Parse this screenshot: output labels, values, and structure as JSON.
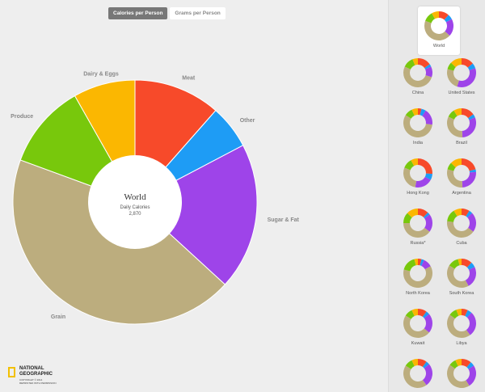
{
  "colors": {
    "meat": "#f74a2a",
    "other": "#1e9cf5",
    "sugar_fat": "#9e44e9",
    "grain": "#bcad7e",
    "produce": "#78c80c",
    "dairy_eggs": "#fbb701",
    "background": "#eeeeee",
    "sidebar_background": "#e8e8e8"
  },
  "toggle": {
    "calories_label": "Calories per Person",
    "grams_label": "Grams per Person"
  },
  "chart_data": {
    "type": "pie",
    "title": "World",
    "subtitle": "Daily Calories",
    "total": "2,870",
    "slices": [
      {
        "key": "meat",
        "label": "Meat",
        "percent": 11.5
      },
      {
        "key": "other",
        "label": "Other",
        "percent": 5.8
      },
      {
        "key": "sugar_fat",
        "label": "Sugar & Fat",
        "percent": 19.5
      },
      {
        "key": "grain",
        "label": "Grain",
        "percent": 43.8
      },
      {
        "key": "produce",
        "label": "Produce",
        "percent": 11.2
      },
      {
        "key": "dairy_eggs",
        "label": "Dairy & Eggs",
        "percent": 8.2
      }
    ]
  },
  "countries": [
    {
      "name": "World",
      "selected": true,
      "slices": [
        11.5,
        5.8,
        19.5,
        43.8,
        11.2,
        8.2
      ]
    },
    {
      "name": "China",
      "selected": false,
      "slices": [
        15,
        3,
        12,
        52,
        12,
        6
      ]
    },
    {
      "name": "United States",
      "selected": false,
      "slices": [
        14,
        6,
        35,
        24,
        8,
        13
      ]
    },
    {
      "name": "India",
      "selected": false,
      "slices": [
        4,
        5,
        18,
        57,
        9,
        7
      ]
    },
    {
      "name": "Brazil",
      "selected": false,
      "slices": [
        15,
        4,
        30,
        33,
        9,
        9
      ]
    },
    {
      "name": "Hong Kong",
      "selected": false,
      "slices": [
        26,
        7,
        20,
        28,
        11,
        8
      ]
    },
    {
      "name": "Argentina",
      "selected": false,
      "slices": [
        21,
        3,
        25,
        30,
        8,
        13
      ]
    },
    {
      "name": "Russia*",
      "selected": false,
      "slices": [
        12,
        3,
        20,
        40,
        12,
        13
      ]
    },
    {
      "name": "Cuba",
      "selected": false,
      "slices": [
        9,
        4,
        22,
        42,
        14,
        9
      ]
    },
    {
      "name": "North Korea",
      "selected": false,
      "slices": [
        4,
        3,
        10,
        62,
        17,
        4
      ]
    },
    {
      "name": "South Korea",
      "selected": false,
      "slices": [
        12,
        6,
        24,
        42,
        12,
        4
      ]
    },
    {
      "name": "Kuwait",
      "selected": false,
      "slices": [
        10,
        4,
        22,
        48,
        9,
        7
      ]
    },
    {
      "name": "Libya",
      "selected": false,
      "slices": [
        7,
        5,
        28,
        45,
        9,
        6
      ]
    },
    {
      "name": "",
      "selected": false,
      "slices": [
        10,
        4,
        26,
        44,
        9,
        7
      ]
    },
    {
      "name": "",
      "selected": false,
      "slices": [
        11,
        5,
        25,
        44,
        8,
        7
      ]
    }
  ],
  "logo": {
    "line1": "NATIONAL",
    "line2": "GEOGRAPHIC",
    "copyright": "COPYRIGHT © 2014",
    "reprint": "REPRINTED WITH PERMISSION"
  }
}
